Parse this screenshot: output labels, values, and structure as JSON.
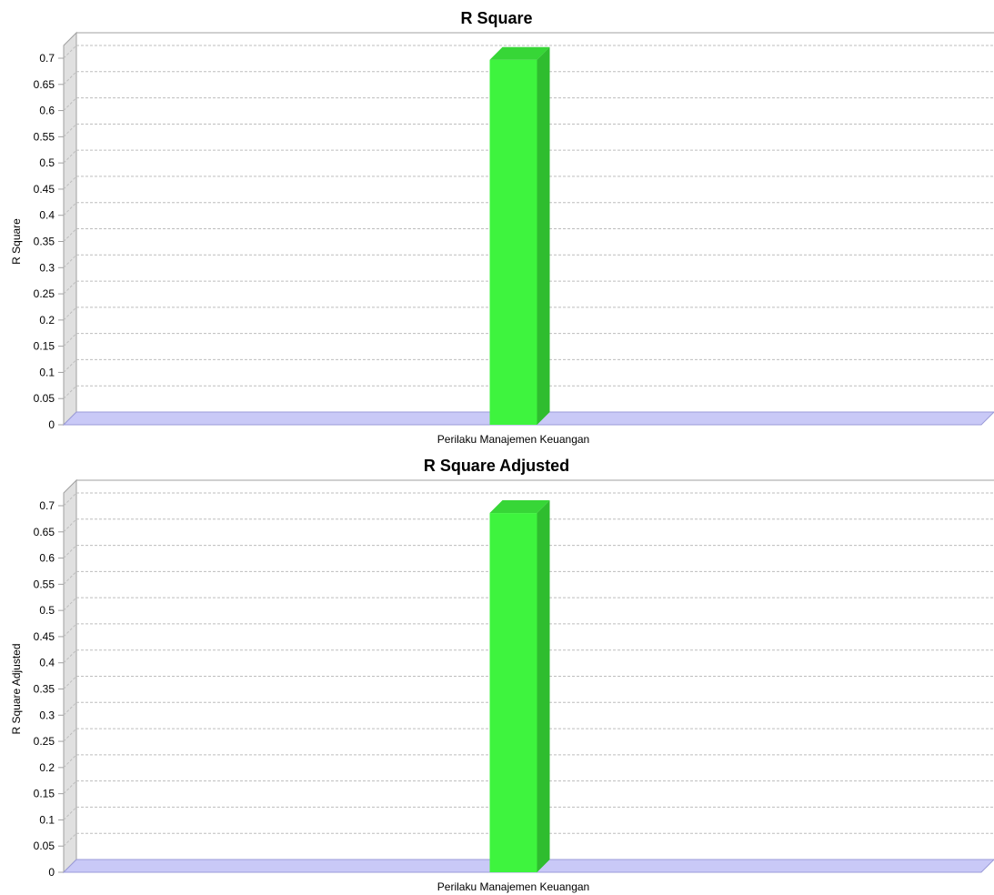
{
  "colors": {
    "bar_front": "#3ef43e",
    "bar_top": "#37d637",
    "bar_side": "#2fbd2f",
    "floor": "#c9c9f7",
    "floor_edge": "#9a9ad8",
    "left_wall": "#e0e0e0",
    "gridline": "#bdbdbd",
    "frame": "#a0a0a0"
  },
  "chart_data": [
    {
      "type": "bar",
      "title": "R Square",
      "ylabel": "R Square",
      "xlabel": "",
      "categories": [
        "Perilaku Manajemen Keuangan"
      ],
      "values": [
        0.697
      ],
      "ylim": [
        0,
        0.7
      ],
      "yticks": [
        "0",
        "0.05",
        "0.1",
        "0.15",
        "0.2",
        "0.25",
        "0.3",
        "0.35",
        "0.4",
        "0.45",
        "0.5",
        "0.55",
        "0.6",
        "0.65",
        "0.7"
      ],
      "grid": true,
      "legend": "none"
    },
    {
      "type": "bar",
      "title": "R Square Adjusted",
      "ylabel": "R Square Adjusted",
      "xlabel": "",
      "categories": [
        "Perilaku Manajemen Keuangan"
      ],
      "values": [
        0.686
      ],
      "ylim": [
        0,
        0.7
      ],
      "yticks": [
        "0",
        "0.05",
        "0.1",
        "0.15",
        "0.2",
        "0.25",
        "0.3",
        "0.35",
        "0.4",
        "0.45",
        "0.5",
        "0.55",
        "0.6",
        "0.65",
        "0.7"
      ],
      "grid": true,
      "legend": "none"
    }
  ]
}
